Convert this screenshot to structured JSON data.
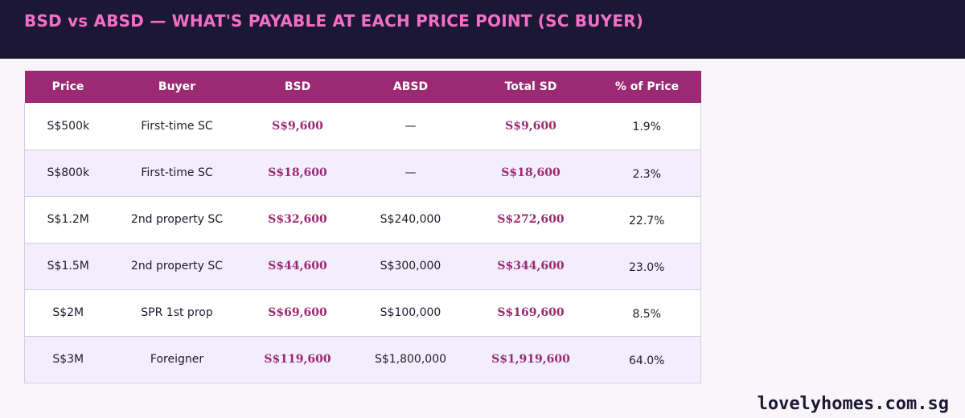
{
  "header": {
    "title": "BSD vs ABSD — WHAT'S PAYABLE AT EACH PRICE POINT (SC BUYER)"
  },
  "table": {
    "columns": [
      "Price",
      "Buyer",
      "BSD",
      "ABSD",
      "Total SD",
      "% of Price"
    ],
    "rows": [
      [
        "S$500k",
        "First-time SC",
        "S$9,600",
        "—",
        "S$9,600",
        "1.9%"
      ],
      [
        "S$800k",
        "First-time SC",
        "S$18,600",
        "—",
        "S$18,600",
        "2.3%"
      ],
      [
        "S$1.2M",
        "2nd property SC",
        "S$32,600",
        "S$240,000",
        "S$272,600",
        "22.7%"
      ],
      [
        "S$1.5M",
        "2nd property SC",
        "S$44,600",
        "S$300,000",
        "S$344,600",
        "23.0%"
      ],
      [
        "S$2M",
        "SPR 1st prop",
        "S$69,600",
        "S$100,000",
        "S$169,600",
        "8.5%"
      ],
      [
        "S$3M",
        "Foreigner",
        "S$119,600",
        "S$1,800,000",
        "S$1,919,600",
        "64.0%"
      ]
    ]
  },
  "footer": {
    "brand": "lovelyhomes.com.sg"
  },
  "colors": {
    "header_bg": "#1c1734",
    "title": "#f36fc7",
    "table_header_bg": "#9b2a73",
    "accent_text": "#9b2a73",
    "row_alt_bg": "#f3eefd"
  }
}
